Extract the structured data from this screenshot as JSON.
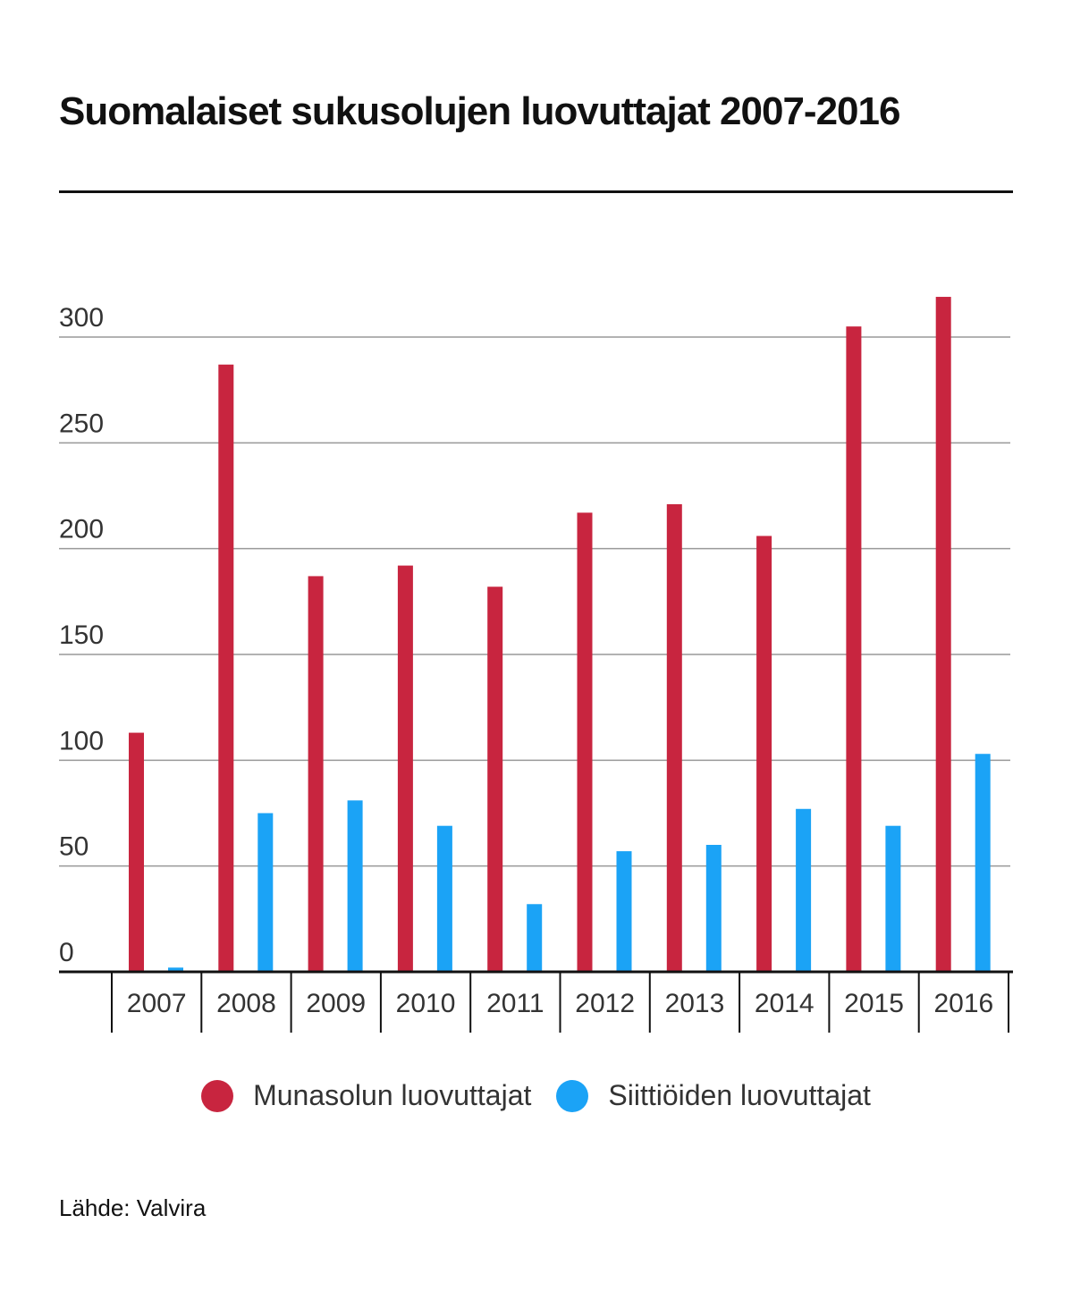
{
  "title": "Suomalaiset sukusolujen luovuttajat 2007-2016",
  "source": "Lähde: Valvira",
  "colors": {
    "munasolu": "#c8253f",
    "siittio": "#1ba3f6",
    "grid": "#999999",
    "axis": "#111111",
    "text": "#333333"
  },
  "chart_data": {
    "type": "bar",
    "title": "Suomalaiset sukusolujen luovuttajat 2007-2016",
    "xlabel": "",
    "ylabel": "",
    "categories": [
      "2007",
      "2008",
      "2009",
      "2010",
      "2011",
      "2012",
      "2013",
      "2014",
      "2015",
      "2016"
    ],
    "series": [
      {
        "name": "Munasolun luovuttajat",
        "color": "#c8253f",
        "values": [
          113,
          287,
          187,
          192,
          182,
          217,
          221,
          206,
          305,
          319
        ]
      },
      {
        "name": "Siittiöiden luovuttajat",
        "color": "#1ba3f6",
        "values": [
          2,
          75,
          81,
          69,
          32,
          57,
          60,
          77,
          69,
          103
        ]
      }
    ],
    "ylim": [
      0,
      300
    ],
    "yticks": [
      "0",
      "50",
      "100",
      "150",
      "200",
      "250",
      "300"
    ],
    "grid": true,
    "legend_position": "bottom"
  }
}
